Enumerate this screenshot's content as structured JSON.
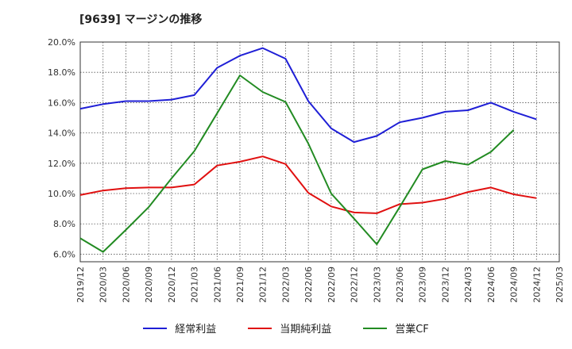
{
  "chart_data": {
    "type": "line",
    "title": "[9639]  マージンの推移",
    "x": [
      "2019/12",
      "2020/03",
      "2020/06",
      "2020/09",
      "2020/12",
      "2021/03",
      "2021/06",
      "2021/09",
      "2021/12",
      "2022/03",
      "2022/06",
      "2022/09",
      "2022/12",
      "2023/03",
      "2023/06",
      "2023/09",
      "2023/12",
      "2024/03",
      "2024/06",
      "2024/09",
      "2024/12",
      "2025/03"
    ],
    "y_ticks": [
      "6.0%",
      "8.0%",
      "10.0%",
      "12.0%",
      "14.0%",
      "16.0%",
      "18.0%",
      "20.0%"
    ],
    "ylim": [
      5.5,
      20.0
    ],
    "grid": true,
    "legend_position": "bottom",
    "series": [
      {
        "name": "経常利益",
        "color": "#1f1fd6",
        "values": [
          15.6,
          15.9,
          16.1,
          16.1,
          16.2,
          16.5,
          18.3,
          19.1,
          19.6,
          18.9,
          16.1,
          14.3,
          13.4,
          13.8,
          14.7,
          15.0,
          15.4,
          15.5,
          16.0,
          15.4,
          14.9,
          null
        ]
      },
      {
        "name": "当期純利益",
        "color": "#e01010",
        "values": [
          9.9,
          10.2,
          10.35,
          10.4,
          10.4,
          10.6,
          11.85,
          12.1,
          12.45,
          11.95,
          10.05,
          9.15,
          8.75,
          8.7,
          9.3,
          9.4,
          9.65,
          10.1,
          10.4,
          9.95,
          9.7,
          null
        ]
      },
      {
        "name": "営業CF",
        "color": "#228b22",
        "values": [
          7.05,
          6.15,
          7.6,
          9.1,
          11.0,
          12.8,
          15.3,
          17.8,
          16.7,
          16.05,
          13.3,
          10.0,
          8.35,
          6.65,
          9.1,
          11.6,
          12.15,
          11.9,
          12.75,
          14.2,
          null,
          null
        ]
      }
    ]
  }
}
